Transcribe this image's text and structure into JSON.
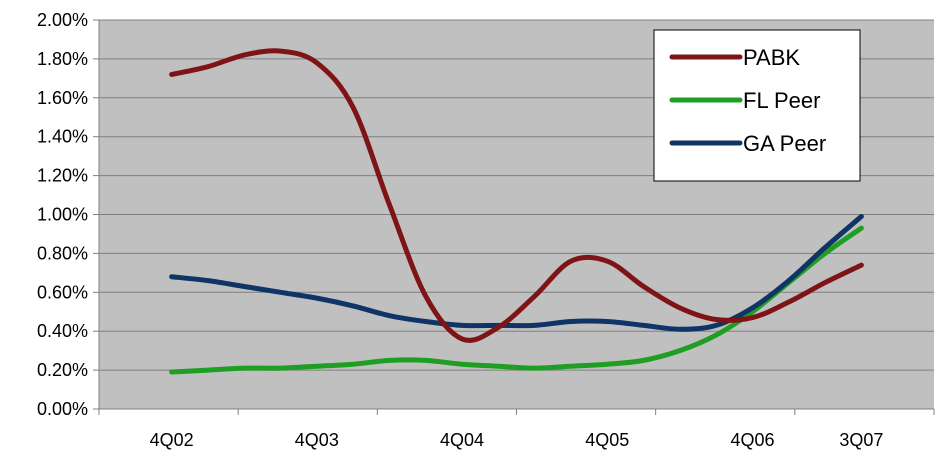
{
  "chart_data": {
    "type": "line",
    "title": "",
    "xlabel": "",
    "ylabel": "",
    "categories": [
      "4Q02",
      "4Q03",
      "4Q04",
      "4Q05",
      "4Q06",
      "3Q07"
    ],
    "x_positions": [
      0,
      4,
      8,
      12,
      16,
      19
    ],
    "x_range": [
      -2,
      21
    ],
    "ylim": [
      0,
      2
    ],
    "y_ticks": [
      {
        "value": 0.0,
        "label": "0.00%"
      },
      {
        "value": 0.2,
        "label": "0.20%"
      },
      {
        "value": 0.4,
        "label": "0.40%"
      },
      {
        "value": 0.6,
        "label": "0.60%"
      },
      {
        "value": 0.8,
        "label": "0.80%"
      },
      {
        "value": 1.0,
        "label": "1.00%"
      },
      {
        "value": 1.2,
        "label": "1.20%"
      },
      {
        "value": 1.4,
        "label": "1.40%"
      },
      {
        "value": 1.6,
        "label": "1.60%"
      },
      {
        "value": 1.8,
        "label": "1.80%"
      },
      {
        "value": 2.0,
        "label": "2.00%"
      }
    ],
    "grid": true,
    "legend_position": "top-right",
    "series": [
      {
        "name": "PABK",
        "color": "#7F1416",
        "x": [
          0,
          1,
          2,
          3,
          4,
          5,
          6,
          7,
          8,
          9,
          10,
          11,
          12,
          13,
          14,
          15,
          16,
          17,
          18,
          19
        ],
        "values": [
          1.72,
          1.76,
          1.82,
          1.84,
          1.78,
          1.55,
          1.05,
          0.58,
          0.36,
          0.42,
          0.58,
          0.76,
          0.76,
          0.63,
          0.52,
          0.46,
          0.47,
          0.55,
          0.65,
          0.74
        ]
      },
      {
        "name": "FL Peer",
        "color": "#1E9E22",
        "x": [
          0,
          1,
          2,
          3,
          4,
          5,
          6,
          7,
          8,
          9,
          10,
          11,
          12,
          13,
          14,
          15,
          16,
          17,
          18,
          19
        ],
        "values": [
          0.19,
          0.2,
          0.21,
          0.21,
          0.22,
          0.23,
          0.25,
          0.25,
          0.23,
          0.22,
          0.21,
          0.22,
          0.23,
          0.25,
          0.3,
          0.38,
          0.5,
          0.65,
          0.8,
          0.93
        ]
      },
      {
        "name": "GA Peer",
        "color": "#0F3466",
        "x": [
          0,
          1,
          2,
          3,
          4,
          5,
          6,
          7,
          8,
          9,
          10,
          11,
          12,
          13,
          14,
          15,
          16,
          17,
          18,
          19
        ],
        "values": [
          0.68,
          0.66,
          0.63,
          0.6,
          0.57,
          0.53,
          0.48,
          0.45,
          0.43,
          0.43,
          0.43,
          0.45,
          0.45,
          0.43,
          0.41,
          0.43,
          0.52,
          0.66,
          0.83,
          0.99
        ]
      }
    ]
  },
  "colors": {
    "plot_background": "#C0C0C0",
    "gridline": "#808080",
    "axis": "#808080"
  }
}
